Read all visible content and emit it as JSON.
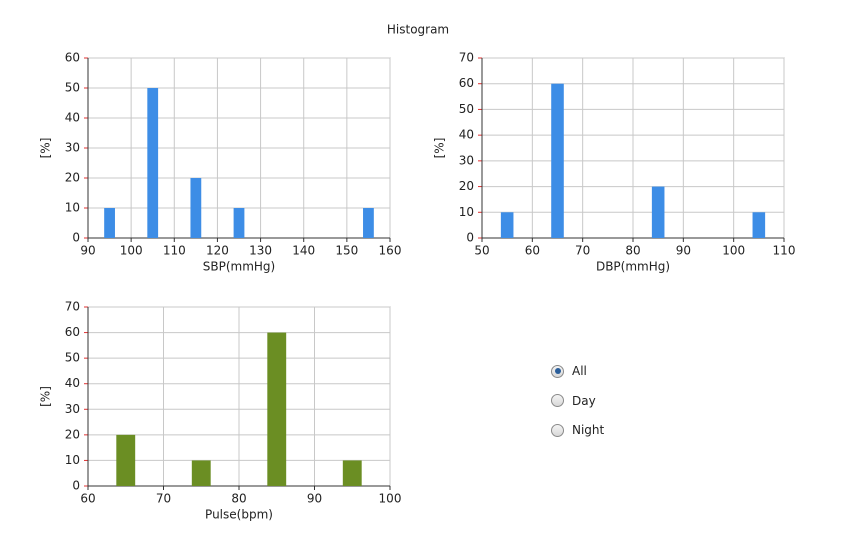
{
  "title": "Histogram",
  "chart_data": [
    {
      "type": "bar",
      "xlabel": "SBP(mmHg)",
      "ylabel": "[%]",
      "color": "#3d8de6",
      "x": [
        95,
        105,
        115,
        125,
        155
      ],
      "values": [
        10,
        50,
        20,
        10,
        10
      ],
      "xlim": [
        90,
        160
      ],
      "xticks": [
        90,
        100,
        110,
        120,
        130,
        140,
        150,
        160
      ],
      "ylim": [
        0,
        60
      ],
      "yticks": [
        0,
        10,
        20,
        30,
        40,
        50,
        60
      ],
      "grid": true
    },
    {
      "type": "bar",
      "xlabel": "DBP(mmHg)",
      "ylabel": "[%]",
      "color": "#3d8de6",
      "x": [
        55,
        65,
        85,
        105
      ],
      "values": [
        10,
        60,
        20,
        10
      ],
      "xlim": [
        50,
        110
      ],
      "xticks": [
        50,
        60,
        70,
        80,
        90,
        100,
        110
      ],
      "ylim": [
        0,
        70
      ],
      "yticks": [
        0,
        10,
        20,
        30,
        40,
        50,
        60,
        70
      ],
      "grid": true
    },
    {
      "type": "bar",
      "xlabel": "Pulse(bpm)",
      "ylabel": "[%]",
      "color": "#6b8e23",
      "x": [
        65,
        75,
        85,
        95
      ],
      "values": [
        20,
        10,
        60,
        10
      ],
      "xlim": [
        60,
        100
      ],
      "xticks": [
        60,
        70,
        80,
        90,
        100
      ],
      "ylim": [
        0,
        70
      ],
      "yticks": [
        0,
        10,
        20,
        30,
        40,
        50,
        60,
        70
      ],
      "grid": true
    }
  ],
  "controls": {
    "options": [
      {
        "label": "All",
        "checked": true
      },
      {
        "label": "Day",
        "checked": false
      },
      {
        "label": "Night",
        "checked": false
      }
    ]
  }
}
